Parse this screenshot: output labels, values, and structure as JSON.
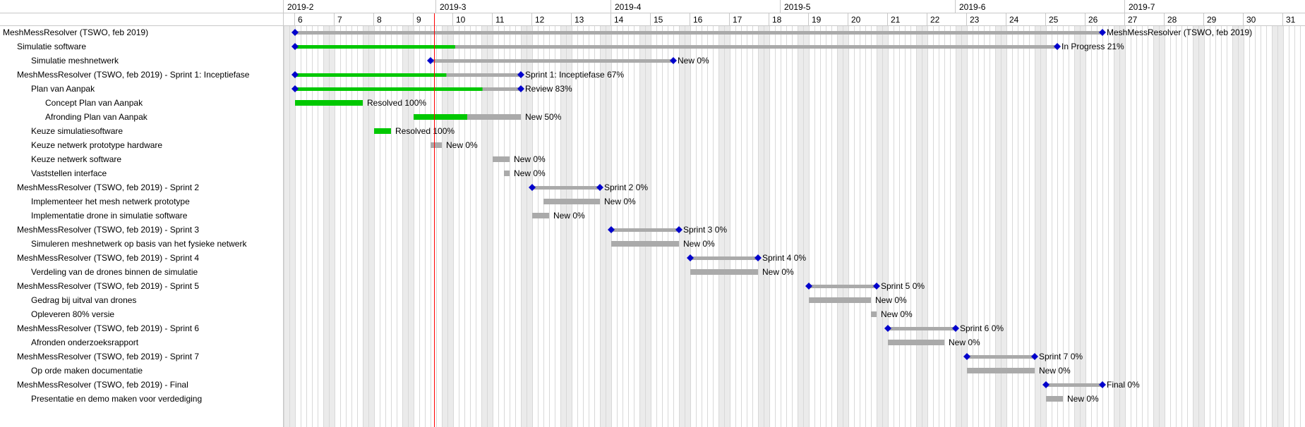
{
  "gantt": {
    "months": [
      "2019-2",
      "2019-3",
      "2019-4",
      "2019-5",
      "2019-6",
      "2019-7"
    ],
    "weeks": [
      "6",
      "7",
      "8",
      "9",
      "10",
      "11",
      "12",
      "13",
      "14",
      "15",
      "16",
      "17",
      "18",
      "19",
      "20",
      "21",
      "22",
      "23",
      "24",
      "25",
      "26",
      "27",
      "28",
      "29",
      "30",
      "31"
    ],
    "today_marker": "2019-03-01",
    "colors": {
      "done": "#00c800",
      "remaining": "#aaaaaa",
      "milestone": "#0000cc",
      "today": "#ff0000",
      "weekend": "#ebebeb",
      "grid": "#d8d8d8"
    },
    "tasks": [
      {
        "name": "MeshMessResolver (TSWO, feb 2019)",
        "indent": 0,
        "kind": "group",
        "start": "2019-02-04",
        "end": "2019-06-27",
        "progress": 0,
        "label": "MeshMessResolver (TSWO, feb 2019)"
      },
      {
        "name": "Simulatie software",
        "indent": 1,
        "kind": "group",
        "start": "2019-02-04",
        "end": "2019-06-19",
        "progress": 0.21,
        "label": "In Progress 21%"
      },
      {
        "name": "Simulatie meshnetwerk",
        "indent": 2,
        "kind": "group",
        "start": "2019-02-28",
        "end": "2019-04-12",
        "progress": 0,
        "label": "New 0%"
      },
      {
        "name": "MeshMessResolver (TSWO, feb 2019) - Sprint 1: Inceptiefase",
        "indent": 1,
        "kind": "group",
        "start": "2019-02-04",
        "end": "2019-03-16",
        "progress": 0.67,
        "label": "Sprint 1: Inceptiefase 67%"
      },
      {
        "name": "Plan van Aanpak",
        "indent": 2,
        "kind": "group",
        "start": "2019-02-04",
        "end": "2019-03-16",
        "progress": 0.83,
        "label": "Review 83%"
      },
      {
        "name": "Concept Plan van Aanpak",
        "indent": 3,
        "kind": "task",
        "start": "2019-02-04",
        "end": "2019-02-16",
        "progress": 1,
        "label": "Resolved 100%"
      },
      {
        "name": "Afronding Plan van Aanpak",
        "indent": 3,
        "kind": "task",
        "start": "2019-02-25",
        "end": "2019-03-16",
        "progress": 0.5,
        "label": "New 50%"
      },
      {
        "name": "Keuze simulatiesoftware",
        "indent": 2,
        "kind": "task",
        "start": "2019-02-18",
        "end": "2019-02-21",
        "progress": 1,
        "label": "Resolved 100%"
      },
      {
        "name": "Keuze netwerk prototype hardware",
        "indent": 2,
        "kind": "task",
        "start": "2019-02-28",
        "end": "2019-03-02",
        "progress": 0,
        "label": "New 0%"
      },
      {
        "name": "Keuze netwerk software",
        "indent": 2,
        "kind": "task",
        "start": "2019-03-11",
        "end": "2019-03-14",
        "progress": 0,
        "label": "New 0%"
      },
      {
        "name": "Vaststellen interface",
        "indent": 2,
        "kind": "task",
        "start": "2019-03-13",
        "end": "2019-03-14",
        "progress": 0,
        "label": "New 0%"
      },
      {
        "name": "MeshMessResolver (TSWO, feb 2019) - Sprint 2",
        "indent": 1,
        "kind": "group",
        "start": "2019-03-18",
        "end": "2019-03-30",
        "progress": 0,
        "label": "Sprint 2 0%"
      },
      {
        "name": "Implementeer het mesh netwerk prototype",
        "indent": 2,
        "kind": "task",
        "start": "2019-03-20",
        "end": "2019-03-30",
        "progress": 0,
        "label": "New 0%"
      },
      {
        "name": "Implementatie drone in simulatie software",
        "indent": 2,
        "kind": "task",
        "start": "2019-03-18",
        "end": "2019-03-21",
        "progress": 0,
        "label": "New 0%"
      },
      {
        "name": "MeshMessResolver (TSWO, feb 2019) - Sprint 3",
        "indent": 1,
        "kind": "group",
        "start": "2019-04-01",
        "end": "2019-04-13",
        "progress": 0,
        "label": "Sprint 3 0%"
      },
      {
        "name": "Simuleren meshnetwerk op basis van het fysieke netwerk",
        "indent": 2,
        "kind": "task",
        "start": "2019-04-01",
        "end": "2019-04-13",
        "progress": 0,
        "label": "New 0%"
      },
      {
        "name": "MeshMessResolver (TSWO, feb 2019) - Sprint 4",
        "indent": 1,
        "kind": "group",
        "start": "2019-04-15",
        "end": "2019-04-27",
        "progress": 0,
        "label": "Sprint 4 0%"
      },
      {
        "name": "Verdeling van de drones binnen de simulatie",
        "indent": 2,
        "kind": "task",
        "start": "2019-04-15",
        "end": "2019-04-27",
        "progress": 0,
        "label": "New 0%"
      },
      {
        "name": "MeshMessResolver (TSWO, feb 2019) - Sprint 5",
        "indent": 1,
        "kind": "group",
        "start": "2019-05-06",
        "end": "2019-05-18",
        "progress": 0,
        "label": "Sprint 5 0%"
      },
      {
        "name": "Gedrag bij uitval van drones",
        "indent": 2,
        "kind": "task",
        "start": "2019-05-06",
        "end": "2019-05-17",
        "progress": 0,
        "label": "New 0%"
      },
      {
        "name": "Opleveren 80% versie",
        "indent": 2,
        "kind": "task",
        "start": "2019-05-17",
        "end": "2019-05-18",
        "progress": 0,
        "label": "New 0%"
      },
      {
        "name": "MeshMessResolver (TSWO, feb 2019) - Sprint 6",
        "indent": 1,
        "kind": "group",
        "start": "2019-05-20",
        "end": "2019-06-01",
        "progress": 0,
        "label": "Sprint 6 0%"
      },
      {
        "name": "Afronden onderzoeksrapport",
        "indent": 2,
        "kind": "task",
        "start": "2019-05-20",
        "end": "2019-05-30",
        "progress": 0,
        "label": "New 0%"
      },
      {
        "name": "MeshMessResolver (TSWO, feb 2019) - Sprint 7",
        "indent": 1,
        "kind": "group",
        "start": "2019-06-03",
        "end": "2019-06-15",
        "progress": 0,
        "label": "Sprint 7 0%"
      },
      {
        "name": "Op orde maken documentatie",
        "indent": 2,
        "kind": "task",
        "start": "2019-06-03",
        "end": "2019-06-15",
        "progress": 0,
        "label": "New 0%"
      },
      {
        "name": "MeshMessResolver (TSWO, feb 2019) - Final",
        "indent": 1,
        "kind": "group",
        "start": "2019-06-17",
        "end": "2019-06-27",
        "progress": 0,
        "label": "Final 0%"
      },
      {
        "name": "Presentatie en demo maken voor verdediging",
        "indent": 2,
        "kind": "task",
        "start": "2019-06-17",
        "end": "2019-06-20",
        "progress": 0,
        "label": "New 0%"
      }
    ]
  }
}
